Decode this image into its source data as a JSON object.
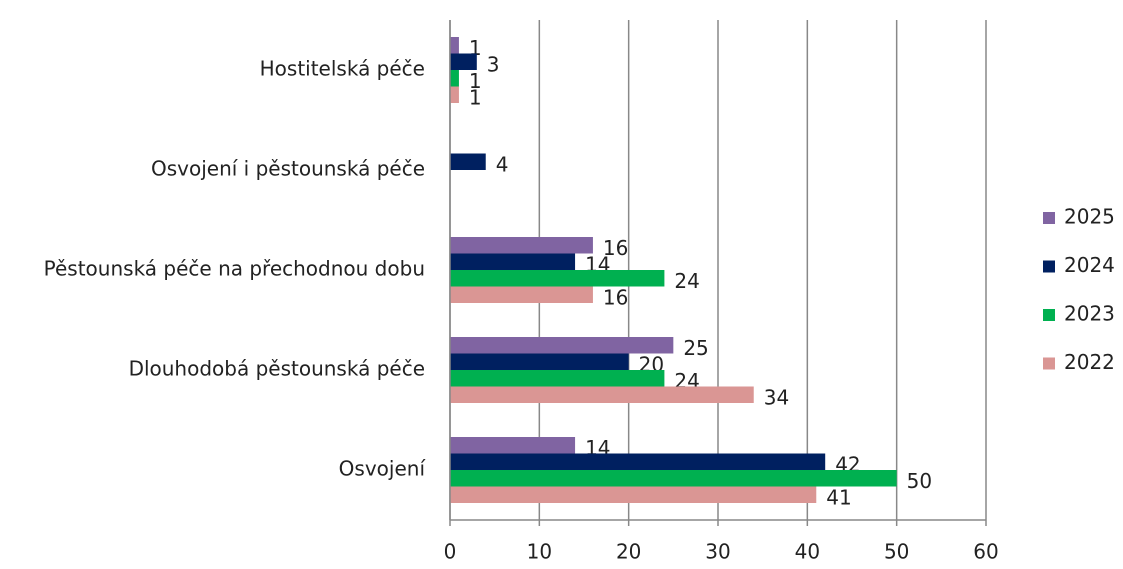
{
  "chart_data": {
    "type": "bar",
    "orientation": "horizontal",
    "categories": [
      "Hostitelská péče",
      "Osvojení i pěstounská péče",
      "Pěstounská péče na přechodnou dobu",
      "Dlouhodobá pěstounská péče",
      "Osvojení"
    ],
    "series": [
      {
        "name": "2025",
        "color": "#8064a2",
        "values": [
          1,
          null,
          16,
          25,
          14
        ]
      },
      {
        "name": "2024",
        "color": "#002060",
        "values": [
          3,
          4,
          14,
          20,
          42
        ]
      },
      {
        "name": "2023",
        "color": "#00b050",
        "values": [
          1,
          null,
          24,
          24,
          50
        ]
      },
      {
        "name": "2022",
        "color": "#da9694",
        "values": [
          1,
          null,
          16,
          34,
          41
        ]
      }
    ],
    "xlim": [
      0,
      60
    ],
    "xticks": [
      0,
      10,
      20,
      30,
      40,
      50,
      60
    ],
    "grid": true,
    "legend": "right"
  }
}
